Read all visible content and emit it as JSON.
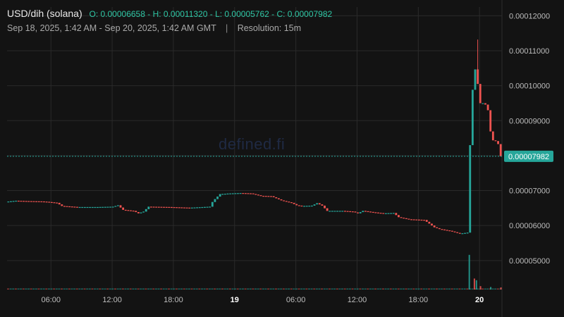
{
  "header": {
    "pair": "USD/dih (solana)",
    "ohlc": "O: 0.00006658 - H: 0.00011320 - L: 0.00005762 - C: 0.00007982",
    "range": "Sep 18, 2025, 1:42 AM - Sep 20, 2025, 1:42 AM GMT",
    "separator": "|",
    "resolution": "Resolution: 15m"
  },
  "watermark": "defined.fi",
  "colors": {
    "background": "#131313",
    "up": "#26a69a",
    "down": "#ef5350",
    "grid": "#2a2a2a",
    "price_line": "#26a69a",
    "axis_text": "#bdbdbd"
  },
  "chart_data": {
    "type": "candlestick",
    "title": "USD/dih (solana)",
    "x_ticks": [
      "06:00",
      "12:00",
      "18:00",
      "19",
      "06:00",
      "12:00",
      "18:00",
      "20"
    ],
    "x_ticks_bold": [
      false,
      false,
      false,
      true,
      false,
      false,
      false,
      true
    ],
    "x_tick_times_h": [
      4.3,
      10.3,
      16.3,
      22.3,
      28.3,
      34.3,
      40.3,
      46.3
    ],
    "y_ticks": [
      "0.00012000",
      "0.00011000",
      "0.00010000",
      "0.00009000",
      "0.00008000",
      "0.00007000",
      "0.00006000",
      "0.00005000"
    ],
    "y_range": [
      4.15e-05,
      0.0001225
    ],
    "x_range_hours": [
      0,
      48.5
    ],
    "last_price": 7.982e-05,
    "last_price_label": "0.00007982",
    "grid": true,
    "ohlc": {
      "open": 6.658e-05,
      "high": 0.0001132,
      "low": 5.762e-05,
      "close": 7.982e-05
    },
    "price_path": [
      [
        0,
        6.68e-05
      ],
      [
        1.0,
        6.71e-05
      ],
      [
        2.0,
        6.7e-05
      ],
      [
        3.5,
        6.69e-05
      ],
      [
        4.0,
        6.68e-05
      ],
      [
        5.0,
        6.65e-05
      ],
      [
        5.5,
        6.56e-05
      ],
      [
        7.0,
        6.53e-05
      ],
      [
        9.0,
        6.53e-05
      ],
      [
        10.5,
        6.54e-05
      ],
      [
        11.0,
        6.58e-05
      ],
      [
        11.5,
        6.45e-05
      ],
      [
        12.5,
        6.42e-05
      ],
      [
        13.0,
        6.35e-05
      ],
      [
        13.5,
        6.4e-05
      ],
      [
        14.0,
        6.54e-05
      ],
      [
        16.0,
        6.53e-05
      ],
      [
        18.0,
        6.51e-05
      ],
      [
        20.0,
        6.54e-05
      ],
      [
        20.3,
        6.7e-05
      ],
      [
        21.0,
        6.9e-05
      ],
      [
        22.0,
        6.92e-05
      ],
      [
        23.0,
        6.93e-05
      ],
      [
        24.0,
        6.92e-05
      ],
      [
        25.0,
        6.85e-05
      ],
      [
        26.0,
        6.84e-05
      ],
      [
        26.5,
        6.78e-05
      ],
      [
        27.0,
        6.72e-05
      ],
      [
        28.0,
        6.65e-05
      ],
      [
        28.5,
        6.58e-05
      ],
      [
        29.0,
        6.56e-05
      ],
      [
        30.0,
        6.57e-05
      ],
      [
        30.5,
        6.64e-05
      ],
      [
        31.0,
        6.57e-05
      ],
      [
        31.5,
        6.42e-05
      ],
      [
        33.0,
        6.42e-05
      ],
      [
        34.0,
        6.4e-05
      ],
      [
        34.5,
        6.35e-05
      ],
      [
        35.0,
        6.42e-05
      ],
      [
        36.0,
        6.38e-05
      ],
      [
        37.0,
        6.35e-05
      ],
      [
        38.0,
        6.36e-05
      ],
      [
        38.5,
        6.24e-05
      ],
      [
        39.5,
        6.18e-05
      ],
      [
        41.0,
        6.16e-05
      ],
      [
        42.0,
        5.95e-05
      ],
      [
        42.5,
        5.9e-05
      ],
      [
        43.5,
        5.85e-05
      ],
      [
        44.5,
        5.77e-05
      ],
      [
        45.3,
        5.8e-05
      ],
      [
        45.5,
        8.3e-05
      ],
      [
        45.8,
        0.000102
      ],
      [
        46.1,
        0.000106
      ],
      [
        46.4,
        9.5e-05
      ],
      [
        46.8,
        9.5e-05
      ],
      [
        47.2,
        9.42e-05
      ],
      [
        47.6,
        8.45e-05
      ],
      [
        48.2,
        8.4e-05
      ],
      [
        48.5,
        7.982e-05
      ]
    ],
    "volume_spikes_hours": [
      [
        45.3,
        0.82
      ],
      [
        45.8,
        0.26
      ],
      [
        46.0,
        0.22
      ],
      [
        46.4,
        0.08
      ],
      [
        47.4,
        0.06
      ],
      [
        48.4,
        0.05
      ]
    ]
  }
}
